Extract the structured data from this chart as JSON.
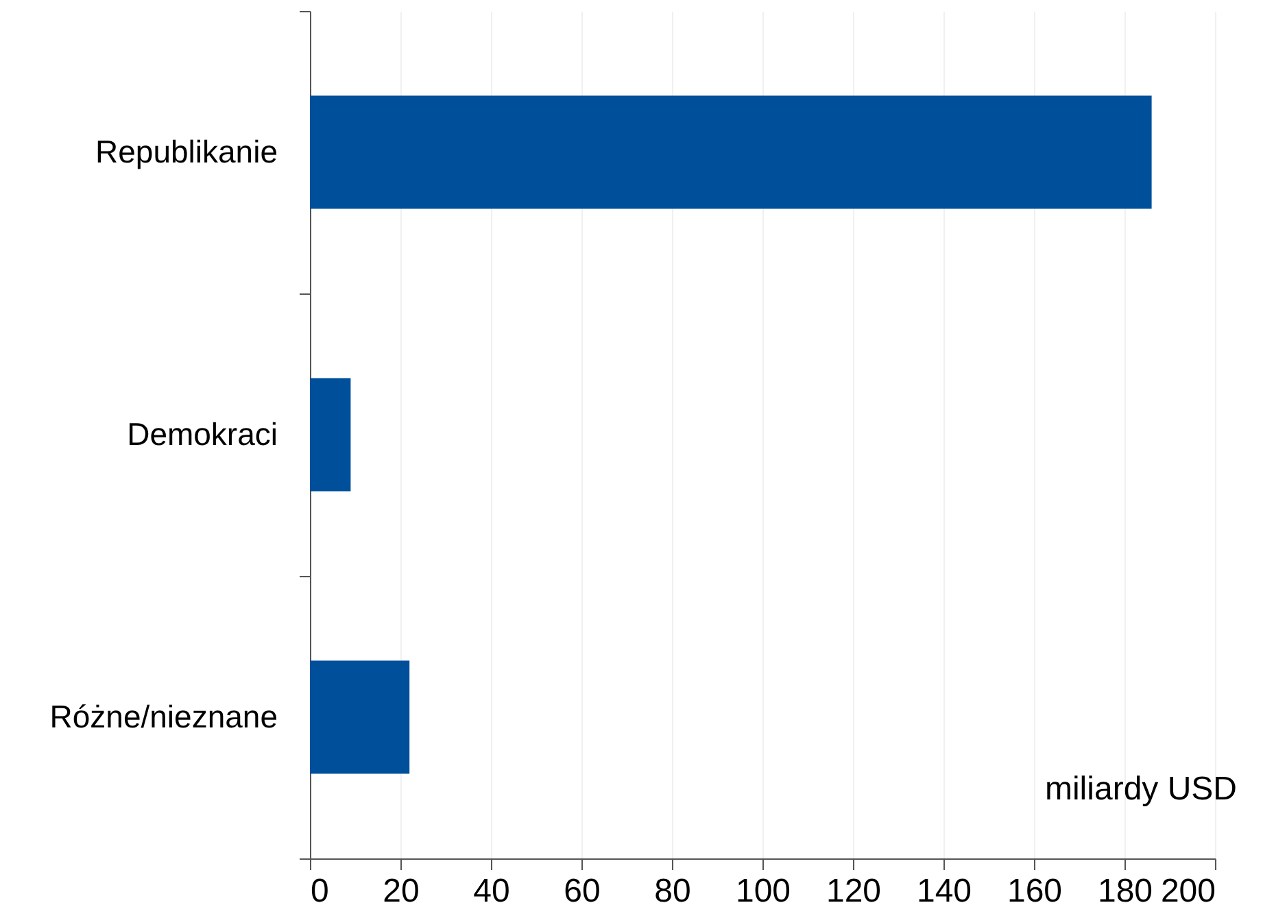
{
  "chart_data": {
    "type": "bar",
    "orientation": "horizontal",
    "categories": [
      "Republikanie",
      "Demokraci",
      "Różne/nieznane"
    ],
    "values": [
      186,
      9,
      22
    ],
    "color": "#004f9b",
    "xlim": [
      0,
      200
    ],
    "xticks": [
      0,
      20,
      40,
      60,
      80,
      100,
      120,
      140,
      160,
      180,
      200
    ],
    "xlabel": "miliardy USD",
    "grid": "x"
  }
}
